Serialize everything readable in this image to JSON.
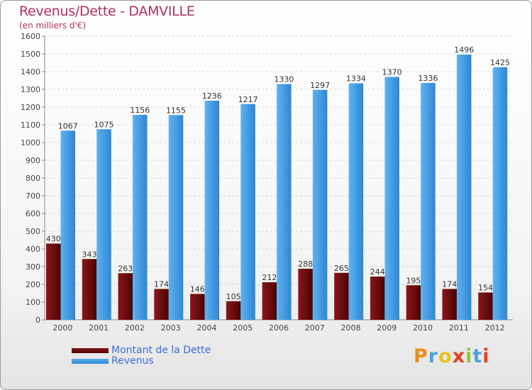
{
  "header": {
    "title": "Revenus/Dette - DAMVILLE",
    "subtitle": "(en milliers d'€)"
  },
  "colors": {
    "dette": "#6b0a0a",
    "revenus": "#3f9ae2",
    "title": "#b03060",
    "legend_text": "#3a6cd6"
  },
  "legend": {
    "dette_label": "Montant de la Dette",
    "revenus_label": "Revenus"
  },
  "logo": {
    "text": "Proxiti"
  },
  "chart_data": {
    "type": "bar",
    "title": "Revenus/Dette - DAMVILLE",
    "subtitle": "(en milliers d'€)",
    "xlabel": "",
    "ylabel": "",
    "ylim": [
      0,
      1600
    ],
    "ytick_step": 100,
    "grid": true,
    "legend_position": "bottom-left",
    "categories": [
      "2000",
      "2001",
      "2002",
      "2003",
      "2004",
      "2005",
      "2006",
      "2007",
      "2008",
      "2009",
      "2010",
      "2011",
      "2012"
    ],
    "series": [
      {
        "name": "Montant de la Dette",
        "values": [
          430,
          343,
          263,
          174,
          146,
          105,
          212,
          288,
          265,
          244,
          195,
          174,
          154
        ]
      },
      {
        "name": "Revenus",
        "values": [
          1067,
          1075,
          1156,
          1155,
          1236,
          1217,
          1330,
          1297,
          1334,
          1370,
          1336,
          1496,
          1425
        ]
      }
    ]
  }
}
